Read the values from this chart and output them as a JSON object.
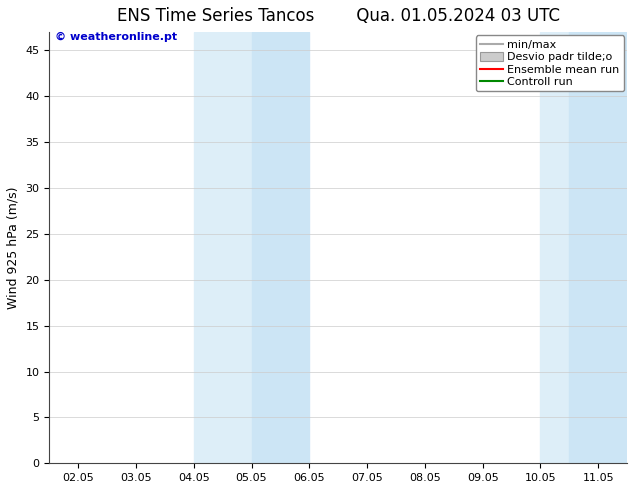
{
  "title_left": "ENS Time Series Tancos",
  "title_right": "Qua. 01.05.2024 03 UTC",
  "ylabel": "Wind 925 hPa (m/s)",
  "watermark": "© weatheronline.pt",
  "ylim": [
    0,
    47
  ],
  "yticks": [
    0,
    5,
    10,
    15,
    20,
    25,
    30,
    35,
    40,
    45
  ],
  "x_labels": [
    "02.05",
    "03.05",
    "04.05",
    "05.05",
    "06.05",
    "07.05",
    "08.05",
    "09.05",
    "10.05",
    "11.05"
  ],
  "x_positions": [
    0,
    1,
    2,
    3,
    4,
    5,
    6,
    7,
    8,
    9
  ],
  "xlim": [
    -0.5,
    9.5
  ],
  "shaded_regions": [
    {
      "xmin": 2.0,
      "xmax": 3.0,
      "color": "#ddeef8"
    },
    {
      "xmin": 3.0,
      "xmax": 4.0,
      "color": "#cce5f5"
    },
    {
      "xmin": 8.0,
      "xmax": 8.5,
      "color": "#ddeef8"
    },
    {
      "xmin": 8.5,
      "xmax": 9.5,
      "color": "#cce5f5"
    }
  ],
  "background_color": "#ffffff",
  "plot_bg_color": "#ffffff",
  "grid_color": "#cccccc",
  "legend_entries": [
    {
      "label": "min/max",
      "color": "#aaaaaa",
      "style": "line"
    },
    {
      "label": "Desvio padr tilde;o",
      "color": "#cccccc",
      "style": "box"
    },
    {
      "label": "Ensemble mean run",
      "color": "#ff0000",
      "style": "line"
    },
    {
      "label": "Controll run",
      "color": "#008800",
      "style": "line"
    }
  ],
  "watermark_color": "#0000cc",
  "title_fontsize": 12,
  "label_fontsize": 9,
  "tick_fontsize": 8,
  "legend_fontsize": 8
}
